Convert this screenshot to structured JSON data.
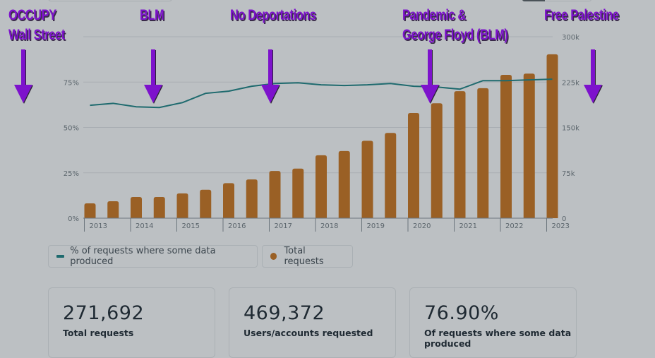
{
  "chart_data": {
    "type": "bar+line",
    "title": "",
    "categories_axis": [
      "2013",
      "2014",
      "2015",
      "2016",
      "2017",
      "2018",
      "2019",
      "2020",
      "2021",
      "2022",
      "2023"
    ],
    "periods": [
      "2013 H1",
      "2013 H2",
      "2014 H1",
      "2014 H2",
      "2015 H1",
      "2015 H2",
      "2016 H1",
      "2016 H2",
      "2017 H1",
      "2017 H2",
      "2018 H1",
      "2018 H2",
      "2019 H1",
      "2019 H2",
      "2020 H1",
      "2020 H2",
      "2021 H1",
      "2021 H2",
      "2022 H1",
      "2022 H2",
      "2023 H1"
    ],
    "series": [
      {
        "name": "Total requests",
        "type": "bar",
        "axis": "right",
        "color": "#9a6025",
        "values": [
          24500,
          28000,
          35000,
          35000,
          41000,
          47000,
          58000,
          64000,
          78000,
          82000,
          104000,
          111000,
          128000,
          141000,
          174000,
          190000,
          210000,
          215000,
          237000,
          239000,
          271000
        ]
      },
      {
        "name": "% of requests where some data produced",
        "type": "line",
        "axis": "left",
        "color": "#1e6a6e",
        "values": [
          62.2,
          63.3,
          61.4,
          61.0,
          63.7,
          68.8,
          70.0,
          72.7,
          74.2,
          74.6,
          73.5,
          73.1,
          73.5,
          74.2,
          72.7,
          72.3,
          71.1,
          75.8,
          75.8,
          76.2,
          76.6
        ]
      }
    ],
    "left_axis": {
      "ticks": [
        "0%",
        "25%",
        "50%",
        "75%"
      ],
      "tick_values": [
        0,
        25,
        50,
        75
      ],
      "range": [
        0,
        100
      ]
    },
    "right_axis": {
      "ticks": [
        "0",
        "75k",
        "150k",
        "225k",
        "300k"
      ],
      "tick_values": [
        0,
        75000,
        150000,
        225000,
        300000
      ],
      "range": [
        0,
        300000
      ]
    },
    "grid": true,
    "legend_position": "bottom-left"
  },
  "annotations": [
    {
      "id": "occupy",
      "lines": [
        "OCCUPY",
        "Wall Street"
      ]
    },
    {
      "id": "blm",
      "lines": [
        "BLM"
      ]
    },
    {
      "id": "no-deportations",
      "lines": [
        "No Deportations"
      ]
    },
    {
      "id": "pandemic",
      "lines": [
        "Pandemic &",
        "George Floyd (BLM)"
      ]
    },
    {
      "id": "free-palestine",
      "lines": [
        "Free Palestine"
      ]
    }
  ],
  "annotation_color": "#7d12cc",
  "legend": {
    "line_label": "% of requests where some data produced",
    "bar_label": "Total requests"
  },
  "stats": [
    {
      "value": "271,692",
      "label": "Total requests"
    },
    {
      "value": "469,372",
      "label": "Users/accounts requested"
    },
    {
      "value": "76.90%",
      "label": "Of requests where some data produced"
    }
  ]
}
